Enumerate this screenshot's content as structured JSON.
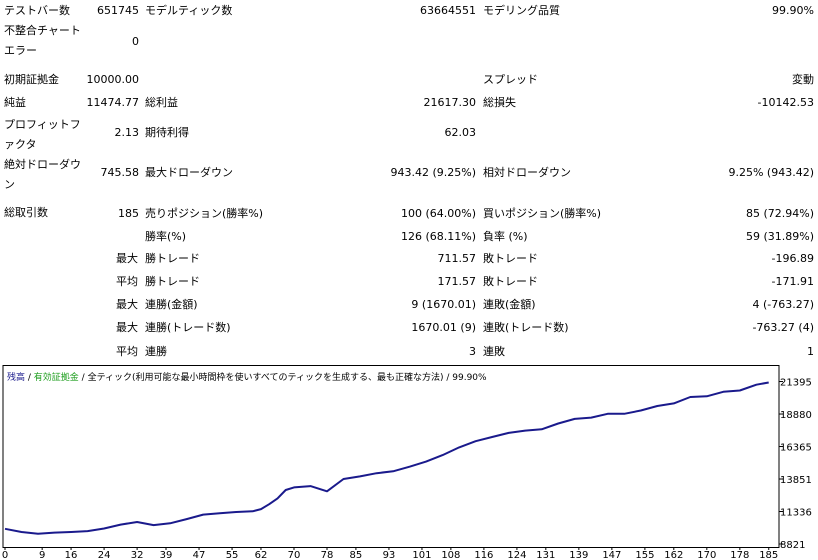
{
  "report": {
    "bars_label": "テストバー数",
    "bars_value": "651745",
    "ticks_label": "モデルティック数",
    "ticks_value": "63664551",
    "quality_label": "モデリング品質",
    "quality_value": "99.90%",
    "mismatch_label": "不整合チャートエラー",
    "mismatch_value": "0",
    "deposit_label": "初期証拠金",
    "deposit_value": "10000.00",
    "spread_label": "スプレッド",
    "spread_value": "変動",
    "net_label": "純益",
    "net_value": "11474.77",
    "gross_profit_label": "総利益",
    "gross_profit_value": "21617.30",
    "gross_loss_label": "総損失",
    "gross_loss_value": "-10142.53",
    "pf_label": "プロフィットファクタ",
    "pf_value": "2.13",
    "expected_label": "期待利得",
    "expected_value": "62.03",
    "abs_dd_label": "絶対ドローダウン",
    "abs_dd_value": "745.58",
    "max_dd_label": "最大ドローダウン",
    "max_dd_value": "943.42 (9.25%)",
    "rel_dd_label": "相対ドローダウン",
    "rel_dd_value": "9.25% (943.42)",
    "trades_label": "総取引数",
    "trades_value": "185",
    "short_label": "売りポジション(勝率%)",
    "short_value": "100 (64.00%)",
    "long_label": "買いポジション(勝率%)",
    "long_value": "85 (72.94%)",
    "win_rate_label": "勝率(%)",
    "win_rate_value": "126 (68.11%)",
    "loss_rate_label": "負率 (%)",
    "loss_rate_value": "59 (31.89%)",
    "max_prefix": "最大",
    "avg_prefix": "平均",
    "max_win_label": "勝トレード",
    "max_win_value": "711.57",
    "max_loss_label": "敗トレード",
    "max_loss_value": "-196.89",
    "avg_win_label": "勝トレード",
    "avg_win_value": "171.57",
    "avg_loss_label": "敗トレード",
    "avg_loss_value": "-171.91",
    "consec_win_amt_label": "連勝(金額)",
    "consec_win_amt_value": "9 (1670.01)",
    "consec_loss_amt_label": "連敗(金額)",
    "consec_loss_amt_value": "4 (-763.27)",
    "consec_win_cnt_label": "連勝(トレード数)",
    "consec_win_cnt_value": "1670.01 (9)",
    "consec_loss_cnt_label": "連敗(トレード数)",
    "consec_loss_cnt_value": "-763.27 (4)",
    "avg_consec_win_label": "連勝",
    "avg_consec_win_value": "3",
    "avg_consec_loss_label": "連敗",
    "avg_consec_loss_value": "1"
  },
  "legend": {
    "balance": "残高",
    "sep1": " / ",
    "equity": "有効証拠金",
    "sep2": " / ",
    "description": "全ティック(利用可能な最小時間枠を使いすべてのティックを生成する、最も正確な方法) / 99.90%"
  },
  "colors": {
    "balance": "#1a1a8c",
    "equity": "#1e9e1e",
    "frame": "#000000"
  },
  "chart_data": {
    "type": "line",
    "series": [
      {
        "name": "残高",
        "x": [
          0,
          4,
          8,
          12,
          16,
          20,
          24,
          28,
          32,
          36,
          40,
          44,
          48,
          52,
          56,
          60,
          62,
          64,
          66,
          68,
          70,
          74,
          78,
          82,
          86,
          90,
          94,
          98,
          102,
          106,
          110,
          114,
          118,
          122,
          126,
          130,
          134,
          138,
          142,
          146,
          150,
          154,
          158,
          162,
          166,
          170,
          174,
          178,
          182,
          185
        ],
        "values": [
          10000,
          9750,
          9620,
          9700,
          9750,
          9820,
          10020,
          10320,
          10520,
          10280,
          10420,
          10750,
          11100,
          11200,
          11300,
          11350,
          11520,
          11900,
          12350,
          13000,
          13200,
          13300,
          12900,
          13850,
          14050,
          14300,
          14450,
          14800,
          15200,
          15700,
          16300,
          16780,
          17100,
          17420,
          17600,
          17700,
          18150,
          18500,
          18600,
          18900,
          18900,
          19150,
          19500,
          19700,
          20200,
          20250,
          20600,
          20700,
          21150,
          21320
        ]
      }
    ],
    "x_ticks": [
      "0",
      "9",
      "16",
      "24",
      "32",
      "39",
      "47",
      "55",
      "62",
      "70",
      "78",
      "85",
      "93",
      "101",
      "108",
      "116",
      "124",
      "131",
      "139",
      "147",
      "155",
      "162",
      "170",
      "178",
      "185"
    ],
    "y_ticks": [
      "21395",
      "18880",
      "16365",
      "13851",
      "11336",
      "8821"
    ],
    "xlim": [
      0,
      187
    ],
    "ylim": [
      8821,
      21900
    ],
    "grid": false
  }
}
